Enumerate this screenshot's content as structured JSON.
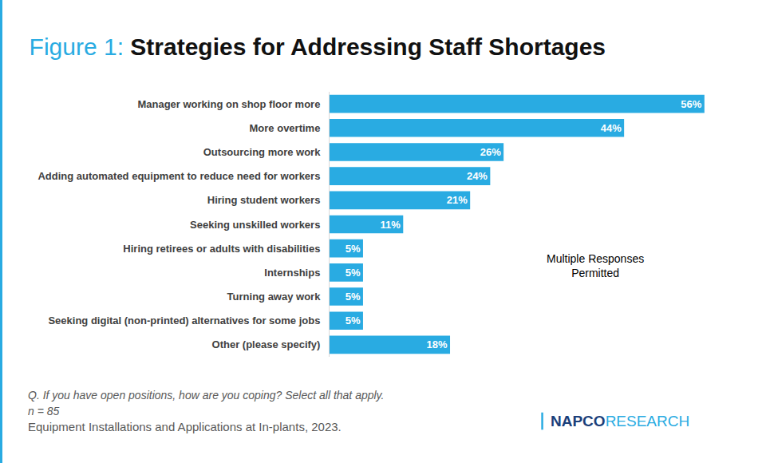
{
  "chart_data": {
    "type": "bar",
    "orientation": "horizontal",
    "title_prefix": "Figure 1:",
    "title": "Strategies for Addressing Staff Shortages",
    "categories": [
      "Manager working on shop floor more",
      "More overtime",
      "Outsourcing more work",
      "Adding automated equipment to reduce need for workers",
      "Hiring student workers",
      "Seeking unskilled workers",
      "Hiring retirees or adults with disabilities",
      "Internships",
      "Turning away work",
      "Seeking digital (non-printed) alternatives for some jobs",
      "Other (please specify)"
    ],
    "values": [
      56,
      44,
      26,
      24,
      21,
      11,
      5,
      5,
      5,
      5,
      18
    ],
    "value_labels": [
      "56%",
      "44%",
      "26%",
      "24%",
      "21%",
      "11%",
      "5%",
      "5%",
      "5%",
      "5%",
      "18%"
    ],
    "data_labels": true,
    "color": "#29abe2",
    "xlim": [
      0,
      59
    ],
    "tick_labels": "y",
    "grid": false,
    "annotation": [
      "Multiple Responses",
      "Permitted"
    ],
    "question": "Q. If you have open positions, how are you coping? Select all that apply.",
    "n": "n = 85",
    "source": "Equipment Installations and Applications at In-plants, 2023.",
    "logo": {
      "bold": "NAPCO",
      "light": "RESEARCH"
    }
  }
}
